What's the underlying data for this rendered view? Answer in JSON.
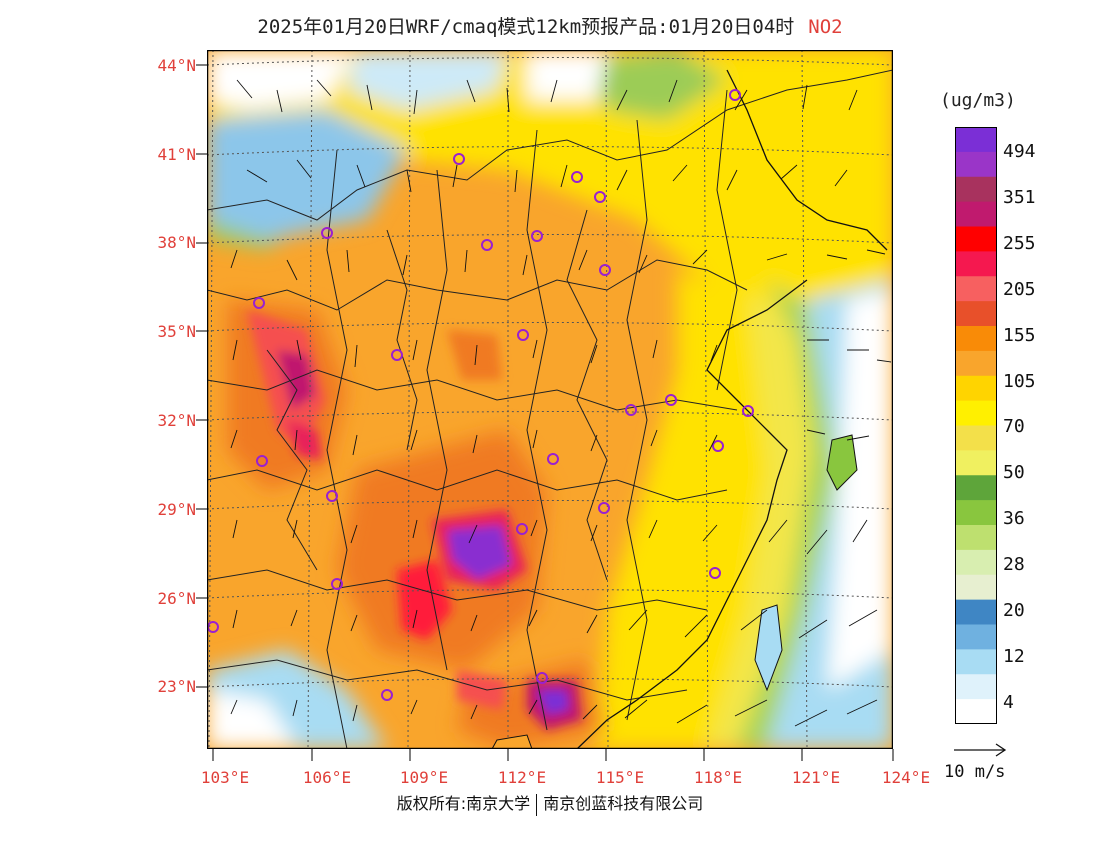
{
  "header": {
    "title": "2025年01月20日WRF/cmaq模式12km预报产品:01月20日04时",
    "pollutant": "NO2"
  },
  "axes": {
    "lat_labels": [
      "44°N",
      "41°N",
      "38°N",
      "35°N",
      "32°N",
      "29°N",
      "26°N",
      "23°N"
    ],
    "lon_labels": [
      "103°E",
      "106°E",
      "109°E",
      "112°E",
      "115°E",
      "118°E",
      "121°E",
      "124°E"
    ]
  },
  "colorbar": {
    "unit": "(ug/m3)",
    "labels": [
      "494",
      "351",
      "255",
      "205",
      "155",
      "105",
      "70",
      "50",
      "36",
      "28",
      "20",
      "12",
      "4"
    ],
    "colors": [
      "#7b2fd6",
      "#9a35c8",
      "#a8325e",
      "#c01a6e",
      "#ff0000",
      "#f5184f",
      "#f76060",
      "#e8502a",
      "#f98b07",
      "#f9a52c",
      "#ffd400",
      "#fff000",
      "#f3e04a",
      "#f0f060",
      "#5ea53a",
      "#89c63e",
      "#bee06f",
      "#d8eeb0",
      "#e7efd0",
      "#3f86c4",
      "#6fb1e0",
      "#a8dcf3",
      "#dff2fb",
      "#ffffff"
    ]
  },
  "wind_reference": {
    "label": "10 m/s"
  },
  "footer": {
    "left": "版权所有:南京大学",
    "right": "南京创蓝科技有限公司"
  }
}
